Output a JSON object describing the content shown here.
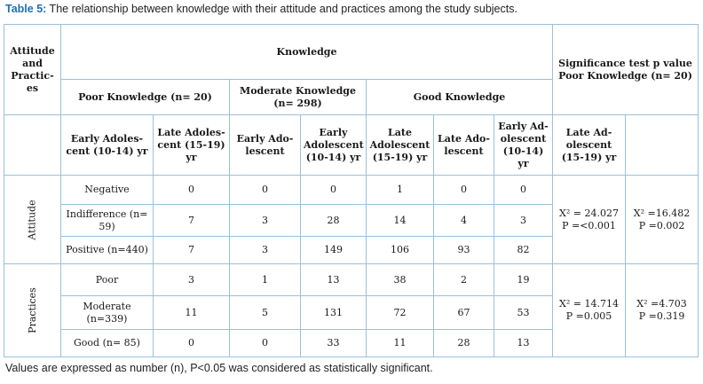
{
  "caption": {
    "label": "Table 5:",
    "text": " The relationship between knowledge with their attitude and practices among the study subjects."
  },
  "header": {
    "attitude_practices": "Attitude and Practic-es",
    "knowledge": "Knowledge",
    "significance": "Significance test p value Poor Knowledge (n= 20)",
    "groups": [
      "Poor Knowledge (n= 20)",
      "Moderate Knowledge (n= 298)",
      "Good Knowledge"
    ],
    "subgroups": [
      "Early Adoles-cent (10-14) yr",
      "Late Adoles-cent (15-19) yr",
      "Early Ado-lescent",
      "Early Adolescent (10-14) yr",
      "Late Adolescent (15-19) yr",
      "Late Ado-lescent",
      "Early Ad-olescent (10-14) yr",
      "Late Ad-olescent (15-19) yr"
    ]
  },
  "sections": [
    {
      "label": "Attitude",
      "rows": [
        {
          "label": "Negative",
          "values": [
            "0",
            "0",
            "0",
            "1",
            "0",
            "0"
          ]
        },
        {
          "label": "Indifference (n= 59)",
          "values": [
            "7",
            "3",
            "28",
            "14",
            "4",
            "3"
          ]
        },
        {
          "label": "Positive (n=440)",
          "values": [
            "7",
            "3",
            "149",
            "106",
            "93",
            "82"
          ]
        }
      ],
      "sig1": [
        "X² = 24.027",
        "P =<0.001"
      ],
      "sig2": [
        "X² =16.482",
        "P =0.002"
      ]
    },
    {
      "label": "Practices",
      "rows": [
        {
          "label": "Poor",
          "values": [
            "3",
            "1",
            "13",
            "38",
            "2",
            "19"
          ]
        },
        {
          "label": "Moderate (n=339)",
          "values": [
            "11",
            "5",
            "131",
            "72",
            "67",
            "53"
          ]
        },
        {
          "label": "Good (n= 85)",
          "values": [
            "0",
            "0",
            "33",
            "11",
            "28",
            "13"
          ]
        }
      ],
      "sig1": [
        "X² = 14.714",
        "P =0.005"
      ],
      "sig2": [
        "X² =4.703",
        "P =0.319"
      ]
    }
  ],
  "footnote": "Values are expressed as number (n), P<0.05 was considered as statistically significant.",
  "colors": {
    "border": "#9ac0dd",
    "caption_label": "#1f6fb5"
  }
}
